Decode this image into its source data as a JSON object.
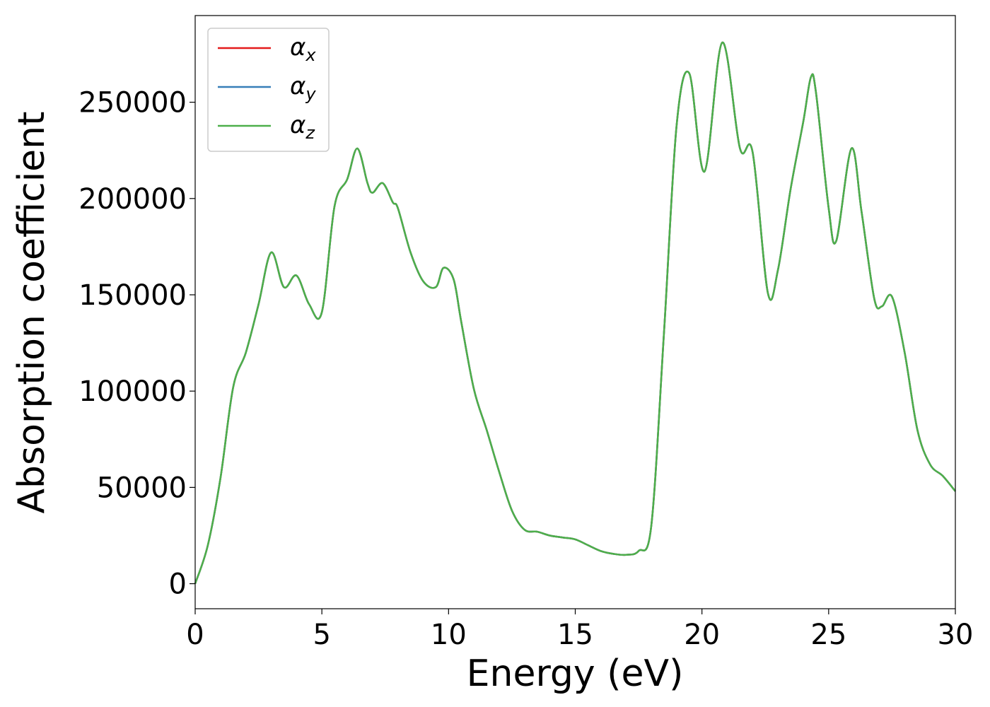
{
  "chart_data": {
    "type": "line",
    "xlabel": "Energy (eV)",
    "ylabel": "Absorption coefficient",
    "xlim": [
      0,
      30
    ],
    "ylim": [
      -13000,
      295000
    ],
    "xticks": [
      0,
      5,
      10,
      15,
      20,
      25,
      30
    ],
    "yticks": [
      0,
      50000,
      100000,
      150000,
      200000,
      250000
    ],
    "grid": false,
    "legend_position": "top-left",
    "x": [
      0,
      0.5,
      1.0,
      1.5,
      2.0,
      2.5,
      3.0,
      3.5,
      4.0,
      4.5,
      5.0,
      5.5,
      6.0,
      6.4,
      6.8,
      7.0,
      7.4,
      7.8,
      8.0,
      8.5,
      9.0,
      9.5,
      9.8,
      10.2,
      10.5,
      11.0,
      11.5,
      12.0,
      12.5,
      13.0,
      13.5,
      14.0,
      14.5,
      15.0,
      15.5,
      16.0,
      16.5,
      17.0,
      17.5,
      18.0,
      18.5,
      19.0,
      19.5,
      20.1,
      20.8,
      21.5,
      22.0,
      22.6,
      23.0,
      23.5,
      24.0,
      24.3,
      24.5,
      25.0,
      25.3,
      25.9,
      26.3,
      26.8,
      27.1,
      27.5,
      28.0,
      28.5,
      29.0,
      29.5,
      30.0
    ],
    "series": [
      {
        "name": "αx",
        "sub": "x",
        "color": "#e41a1c",
        "values": [
          0,
          20000,
          55000,
          102000,
          120000,
          145000,
          172000,
          154000,
          160000,
          145000,
          141000,
          196000,
          210000,
          226000,
          208000,
          203000,
          208000,
          198000,
          195000,
          172000,
          157000,
          154000,
          164000,
          158000,
          136000,
          101000,
          80000,
          58000,
          38000,
          28000,
          27000,
          25000,
          24000,
          23000,
          20000,
          17000,
          15500,
          15000,
          17000,
          30000,
          130000,
          238000,
          265000,
          214000,
          281000,
          226000,
          224000,
          151000,
          163000,
          205000,
          240000,
          263000,
          255000,
          195000,
          178000,
          226000,
          193000,
          148000,
          144000,
          149000,
          120000,
          80000,
          62000,
          56000,
          48000
        ]
      },
      {
        "name": "αy",
        "sub": "y",
        "color": "#377eb8",
        "values": [
          0,
          20000,
          55000,
          102000,
          120000,
          145000,
          172000,
          154000,
          160000,
          145000,
          141000,
          196000,
          210000,
          226000,
          208000,
          203000,
          208000,
          198000,
          195000,
          172000,
          157000,
          154000,
          164000,
          158000,
          136000,
          101000,
          80000,
          58000,
          38000,
          28000,
          27000,
          25000,
          24000,
          23000,
          20000,
          17000,
          15500,
          15000,
          17000,
          30000,
          130000,
          238000,
          265000,
          214000,
          281000,
          226000,
          224000,
          151000,
          163000,
          205000,
          240000,
          263000,
          255000,
          195000,
          178000,
          226000,
          193000,
          148000,
          144000,
          149000,
          120000,
          80000,
          62000,
          56000,
          48000
        ]
      },
      {
        "name": "αz",
        "sub": "z",
        "color": "#4daf4a",
        "values": [
          0,
          20000,
          55000,
          102000,
          120000,
          145000,
          172000,
          154000,
          160000,
          145000,
          141000,
          196000,
          210000,
          226000,
          208000,
          203000,
          208000,
          198000,
          195000,
          172000,
          157000,
          154000,
          164000,
          158000,
          136000,
          101000,
          80000,
          58000,
          38000,
          28000,
          27000,
          25000,
          24000,
          23000,
          20000,
          17000,
          15500,
          15000,
          17000,
          30000,
          130000,
          238000,
          265000,
          214000,
          281000,
          226000,
          224000,
          151000,
          163000,
          205000,
          240000,
          263000,
          255000,
          195000,
          178000,
          226000,
          193000,
          148000,
          144000,
          149000,
          120000,
          80000,
          62000,
          56000,
          48000
        ]
      }
    ]
  }
}
